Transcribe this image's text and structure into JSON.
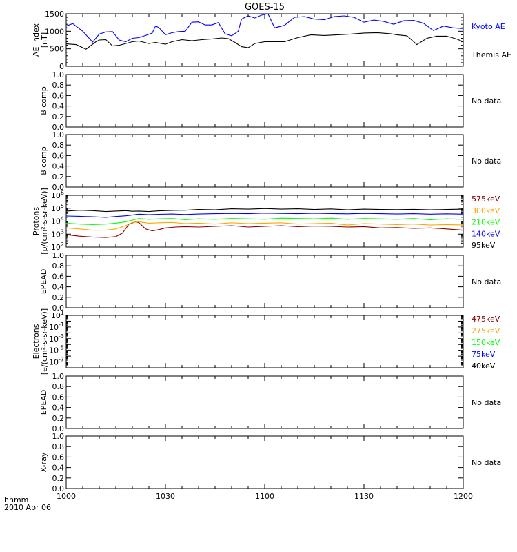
{
  "title": "GOES-15",
  "footer": {
    "time_label": "hhmm",
    "date_label": "2010 Apr 06"
  },
  "x_ticks": [
    "1000",
    "1030",
    "1100",
    "1130",
    "1200"
  ],
  "colors": {
    "black": "#000000",
    "blue": "#0000ff",
    "green": "#00ff00",
    "orange": "#ffa500",
    "darkred": "#8b0000"
  },
  "chart_data": [
    {
      "type": "line",
      "id": "ae",
      "ylabel": "AE index\n[nT]",
      "ylim": [
        0,
        1500
      ],
      "yticks": [
        "0",
        "500",
        "1000",
        "1500"
      ],
      "x_range_minutes": [
        0,
        120
      ],
      "series": [
        {
          "name": "Kyoto AE",
          "color": "#0000ff",
          "x": [
            0,
            2,
            5,
            8,
            10,
            12,
            14,
            16,
            18,
            20,
            22,
            24,
            26,
            27,
            28,
            30,
            32,
            34,
            36,
            38,
            40,
            42,
            44,
            46,
            48,
            50,
            52,
            53,
            55,
            57,
            59,
            61,
            63,
            66,
            69,
            72,
            75,
            78,
            81,
            84,
            87,
            90,
            93,
            96,
            99,
            102,
            105,
            108,
            111,
            114,
            117,
            120
          ],
          "values": [
            1150,
            1220,
            1000,
            690,
            920,
            980,
            990,
            750,
            700,
            800,
            820,
            880,
            950,
            1150,
            1110,
            900,
            960,
            990,
            1000,
            1260,
            1270,
            1180,
            1180,
            1250,
            930,
            870,
            1000,
            1350,
            1440,
            1380,
            1460,
            1500,
            1100,
            1170,
            1400,
            1420,
            1350,
            1330,
            1420,
            1440,
            1400,
            1260,
            1320,
            1280,
            1200,
            1300,
            1310,
            1230,
            1020,
            1150,
            1100,
            1080
          ]
        },
        {
          "name": "Themis AE",
          "color": "#000000",
          "x": [
            0,
            3,
            6,
            9,
            10,
            12,
            14,
            16,
            18,
            20,
            22,
            25,
            27,
            30,
            32,
            35,
            38,
            41,
            44,
            47,
            49,
            51,
            53,
            55,
            57,
            60,
            63,
            66,
            70,
            74,
            78,
            82,
            86,
            90,
            94,
            98,
            100,
            103,
            106,
            109,
            112,
            115,
            118,
            120
          ],
          "values": [
            640,
            620,
            490,
            700,
            750,
            760,
            580,
            600,
            650,
            700,
            720,
            650,
            680,
            630,
            700,
            760,
            730,
            760,
            780,
            810,
            790,
            680,
            560,
            530,
            650,
            700,
            700,
            700,
            820,
            900,
            880,
            900,
            920,
            950,
            960,
            930,
            900,
            870,
            620,
            800,
            860,
            860,
            780,
            700
          ]
        }
      ]
    },
    {
      "type": "line",
      "id": "bcomp1",
      "ylabel": "B comp",
      "ylim": [
        0,
        1
      ],
      "yticks": [
        "0.0",
        "0.2",
        "0.4",
        "0.6",
        "0.8",
        "1.0"
      ],
      "status": "No data",
      "series": []
    },
    {
      "type": "line",
      "id": "bcomp2",
      "ylabel": "B comp",
      "ylim": [
        0,
        1
      ],
      "yticks": [
        "0.0",
        "0.2",
        "0.4",
        "0.6",
        "0.8",
        "1.0"
      ],
      "status": "No data",
      "series": []
    },
    {
      "type": "line",
      "id": "protons",
      "scale": "log",
      "ylabel": "Protons\n[p/(cm²-s-sr-keV)]",
      "ylim": [
        100,
        1000000
      ],
      "ytick_exponents": [
        2,
        3,
        4,
        5,
        6
      ],
      "x_range_minutes": [
        0,
        120
      ],
      "series": [
        {
          "name": "575keV",
          "color": "#8b0000",
          "x": [
            0,
            4,
            8,
            12,
            15,
            17,
            19,
            21,
            22,
            24,
            26,
            28,
            30,
            33,
            36,
            40,
            45,
            50,
            55,
            60,
            65,
            70,
            75,
            80,
            85,
            90,
            95,
            100,
            105,
            110,
            115,
            120
          ],
          "values": [
            900,
            700,
            600,
            550,
            650,
            1200,
            6000,
            9000,
            7500,
            2500,
            1800,
            2200,
            3000,
            3500,
            3800,
            3500,
            4000,
            4500,
            3500,
            4000,
            4500,
            3800,
            4200,
            4000,
            3500,
            3800,
            3000,
            3200,
            2800,
            3000,
            2500,
            2000
          ]
        },
        {
          "name": "300keV",
          "color": "#ffa500",
          "x": [
            0,
            4,
            8,
            12,
            15,
            18,
            20,
            22,
            25,
            28,
            32,
            36,
            40,
            45,
            50,
            55,
            60,
            65,
            70,
            75,
            80,
            85,
            90,
            95,
            100,
            105,
            110,
            115,
            120
          ],
          "values": [
            3000,
            2500,
            2000,
            2000,
            2500,
            4500,
            8000,
            9000,
            7000,
            7500,
            8000,
            6500,
            7000,
            6000,
            7500,
            6500,
            7000,
            7500,
            6000,
            6500,
            7000,
            5000,
            6500,
            6000,
            5500,
            6000,
            5000,
            5500,
            5000
          ]
        },
        {
          "name": "210keV",
          "color": "#00ff00",
          "x": [
            0,
            4,
            8,
            12,
            15,
            18,
            20,
            22,
            25,
            28,
            32,
            36,
            40,
            45,
            50,
            55,
            60,
            65,
            70,
            75,
            80,
            85,
            90,
            95,
            100,
            105,
            110,
            115,
            120
          ],
          "values": [
            7000,
            6000,
            5500,
            6000,
            7000,
            9000,
            12000,
            16000,
            14000,
            15000,
            16000,
            13000,
            15000,
            14000,
            16000,
            15000,
            14000,
            17000,
            16000,
            15000,
            17000,
            14000,
            16000,
            15000,
            14000,
            16000,
            13000,
            15000,
            14000
          ]
        },
        {
          "name": "140keV",
          "color": "#0000ff",
          "x": [
            0,
            4,
            8,
            12,
            15,
            18,
            20,
            22,
            25,
            28,
            32,
            36,
            40,
            45,
            50,
            55,
            60,
            65,
            70,
            75,
            80,
            85,
            90,
            95,
            100,
            105,
            110,
            115,
            120
          ],
          "values": [
            25000,
            24000,
            22000,
            20000,
            23000,
            26000,
            30000,
            35000,
            32000,
            34000,
            36000,
            33000,
            36000,
            38000,
            40000,
            38000,
            42000,
            40000,
            38000,
            41000,
            39000,
            37000,
            40000,
            38000,
            36000,
            38000,
            35000,
            37000,
            35000
          ]
        },
        {
          "name": "95keV",
          "color": "#000000",
          "x": [
            0,
            4,
            8,
            12,
            15,
            18,
            20,
            22,
            25,
            28,
            32,
            36,
            40,
            45,
            50,
            55,
            60,
            65,
            70,
            75,
            80,
            85,
            90,
            95,
            100,
            105,
            110,
            115,
            120
          ],
          "values": [
            60000,
            70000,
            65000,
            55000,
            60000,
            65000,
            58000,
            60000,
            55000,
            62000,
            68000,
            70000,
            80000,
            75000,
            90000,
            85000,
            95000,
            85000,
            90000,
            80000,
            88000,
            75000,
            85000,
            80000,
            78000,
            82000,
            75000,
            80000,
            85000
          ]
        }
      ]
    },
    {
      "type": "line",
      "id": "epead1",
      "ylabel": "EPEAD",
      "ylim": [
        0,
        1
      ],
      "yticks": [
        "0.0",
        "0.2",
        "0.4",
        "0.6",
        "0.8",
        "1.0"
      ],
      "status": "No data",
      "series": []
    },
    {
      "type": "line",
      "id": "electrons",
      "scale": "log",
      "ylabel": "Electrons\n[e/(cm²-s-sr-keV)]",
      "ylim": [
        1e-08,
        10
      ],
      "ytick_exponents": [
        1,
        -1,
        -3,
        -5,
        -7
      ],
      "series": [
        {
          "name": "475keV",
          "color": "#8b0000",
          "values": []
        },
        {
          "name": "275keV",
          "color": "#ffa500",
          "values": []
        },
        {
          "name": "150keV",
          "color": "#00ff00",
          "values": []
        },
        {
          "name": "75keV",
          "color": "#0000ff",
          "values": []
        },
        {
          "name": "40keV",
          "color": "#000000",
          "values": []
        }
      ]
    },
    {
      "type": "line",
      "id": "epead2",
      "ylabel": "EPEAD",
      "ylim": [
        0,
        1
      ],
      "yticks": [
        "0.0",
        "0.2",
        "0.4",
        "0.6",
        "0.8",
        "1.0"
      ],
      "status": "No data",
      "series": []
    },
    {
      "type": "line",
      "id": "xray",
      "ylabel": "X-ray",
      "ylim": [
        0,
        1
      ],
      "yticks": [
        "0.0",
        "0.2",
        "0.4",
        "0.6",
        "0.8",
        "1.0"
      ],
      "status": "No data",
      "series": []
    }
  ]
}
